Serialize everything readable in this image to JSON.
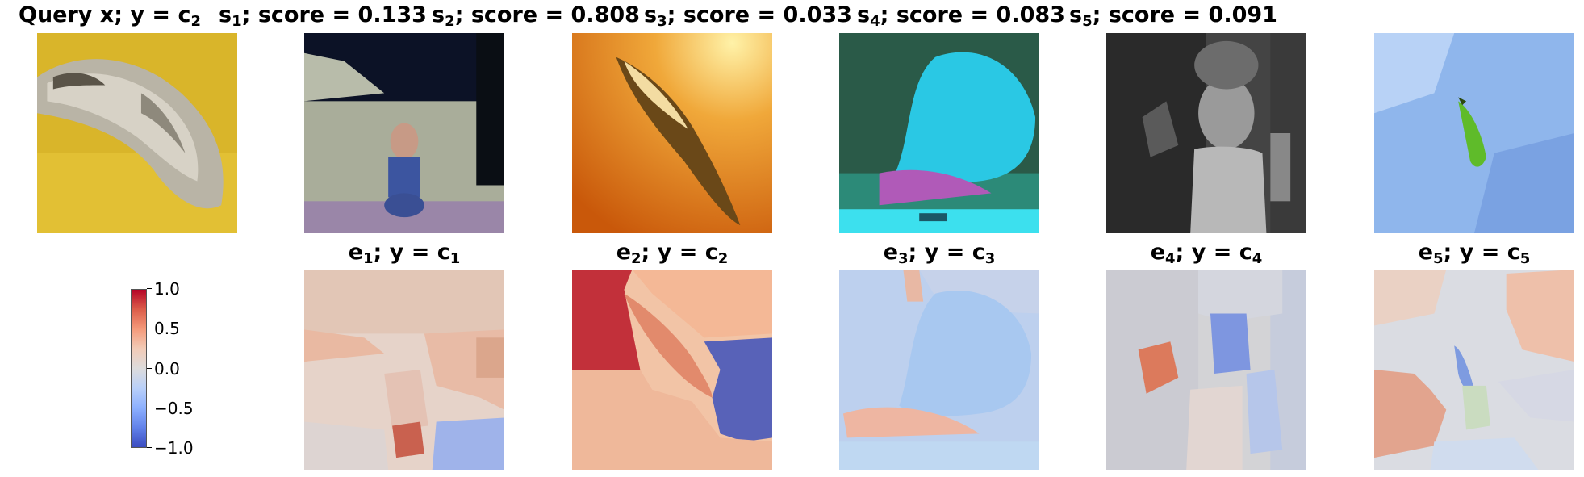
{
  "top_row": [
    {
      "var": "Query x",
      "label": "y = c",
      "sub": "2",
      "score": null
    },
    {
      "var": "s",
      "sub": "1",
      "score": "score = 0.133"
    },
    {
      "var": "s",
      "sub": "2",
      "score": "score = 0.808"
    },
    {
      "var": "s",
      "sub": "3",
      "score": "score = 0.033"
    },
    {
      "var": "s",
      "sub": "4",
      "score": "score = 0.083"
    },
    {
      "var": "s",
      "sub": "5",
      "score": "score = 0.091"
    }
  ],
  "bottom_row": [
    {
      "var": "e",
      "sub": "1",
      "label": "y = c",
      "label_sub": "1"
    },
    {
      "var": "e",
      "sub": "2",
      "label": "y = c",
      "label_sub": "2"
    },
    {
      "var": "e",
      "sub": "3",
      "label": "y = c",
      "label_sub": "3"
    },
    {
      "var": "e",
      "sub": "4",
      "label": "y = c",
      "label_sub": "4"
    },
    {
      "var": "e",
      "sub": "5",
      "label": "y = c",
      "label_sub": "5"
    }
  ],
  "colorbar": {
    "ticks": [
      "1.0",
      "0.5",
      "0.0",
      "−0.5",
      "−1.0"
    ],
    "min": -1.0,
    "max": 1.0,
    "colormap": [
      "#b40426",
      "#dddcdc",
      "#3b4cc0"
    ]
  },
  "colors": {
    "positive": "#c0282f",
    "negative": "#4a56b8",
    "neutral": "#dcdcdc"
  }
}
